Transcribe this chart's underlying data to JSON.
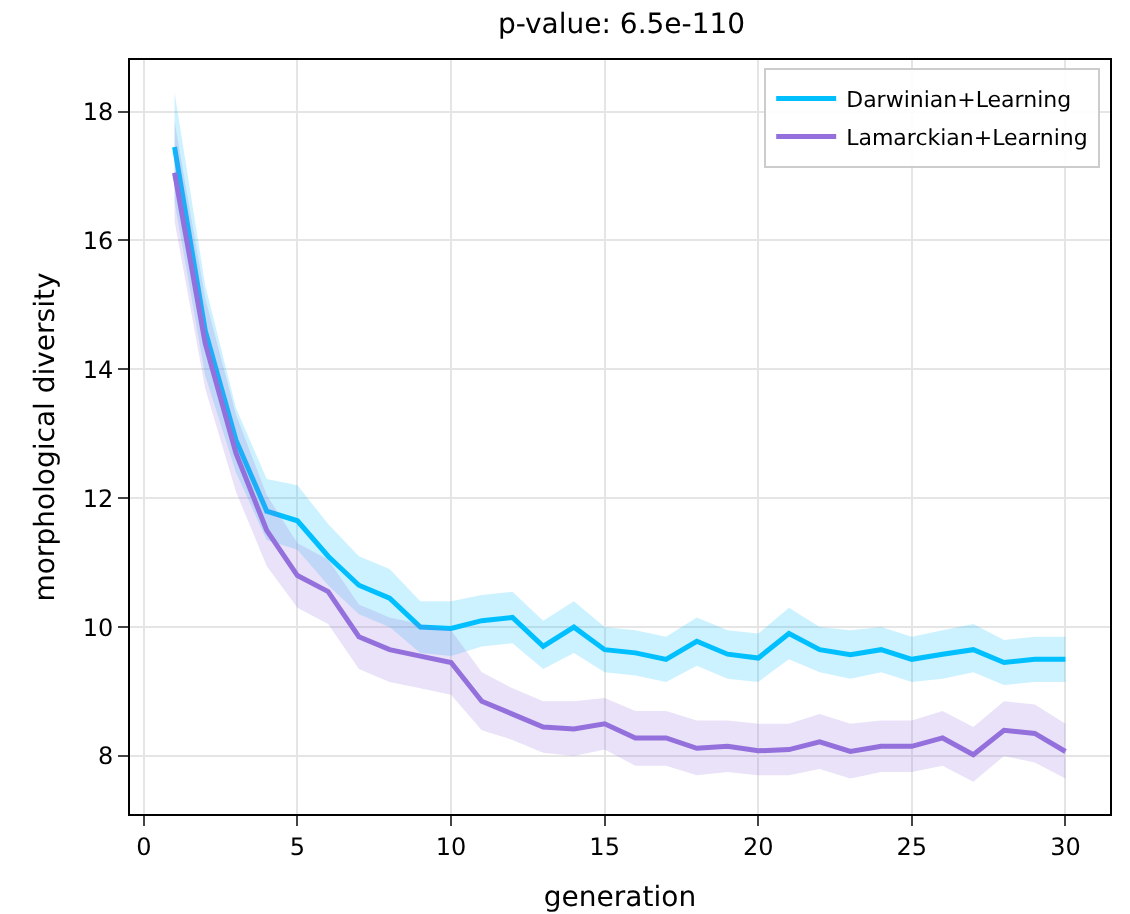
{
  "chart_data": {
    "type": "line",
    "title": "p-value: 6.5e-110",
    "xlabel": "generation",
    "ylabel": "morphological diversity",
    "x": [
      1,
      2,
      3,
      4,
      5,
      6,
      7,
      8,
      9,
      10,
      11,
      12,
      13,
      14,
      15,
      16,
      17,
      18,
      19,
      20,
      21,
      22,
      23,
      24,
      25,
      26,
      27,
      28,
      29,
      30
    ],
    "series": [
      {
        "name": "Darwinian+Learning",
        "color": "#00bfff",
        "values": [
          17.45,
          14.6,
          12.9,
          11.8,
          11.65,
          11.1,
          10.65,
          10.45,
          10.0,
          9.98,
          10.1,
          10.15,
          9.7,
          10.0,
          9.65,
          9.6,
          9.5,
          9.78,
          9.58,
          9.52,
          9.9,
          9.65,
          9.57,
          9.65,
          9.5,
          9.58,
          9.65,
          9.45,
          9.5,
          9.5
        ],
        "lower": [
          16.6,
          13.9,
          12.4,
          11.35,
          11.2,
          10.65,
          10.2,
          10.0,
          9.6,
          9.55,
          9.7,
          9.75,
          9.35,
          9.6,
          9.3,
          9.25,
          9.15,
          9.4,
          9.2,
          9.15,
          9.5,
          9.3,
          9.2,
          9.3,
          9.15,
          9.2,
          9.3,
          9.1,
          9.15,
          9.15
        ],
        "upper": [
          18.3,
          15.3,
          13.4,
          12.3,
          12.2,
          11.6,
          11.1,
          10.9,
          10.4,
          10.4,
          10.5,
          10.55,
          10.1,
          10.4,
          10.0,
          9.95,
          9.85,
          10.15,
          9.95,
          9.9,
          10.3,
          10.0,
          9.95,
          10.0,
          9.85,
          9.95,
          10.05,
          9.8,
          9.85,
          9.85
        ]
      },
      {
        "name": "Lamarckian+Learning",
        "color": "#9370db",
        "values": [
          17.05,
          14.4,
          12.7,
          11.5,
          10.8,
          10.55,
          9.85,
          9.65,
          9.55,
          9.45,
          8.85,
          8.65,
          8.45,
          8.42,
          8.5,
          8.28,
          8.28,
          8.12,
          8.15,
          8.08,
          8.1,
          8.22,
          8.07,
          8.15,
          8.15,
          8.28,
          8.02,
          8.4,
          8.35,
          8.07
        ],
        "lower": [
          16.3,
          13.7,
          12.1,
          10.95,
          10.3,
          10.05,
          9.35,
          9.15,
          9.05,
          8.95,
          8.4,
          8.25,
          8.05,
          8.0,
          8.1,
          7.85,
          7.85,
          7.7,
          7.75,
          7.7,
          7.7,
          7.8,
          7.65,
          7.75,
          7.75,
          7.85,
          7.6,
          8.0,
          7.9,
          7.65
        ],
        "upper": [
          17.85,
          15.1,
          13.3,
          12.05,
          11.3,
          11.05,
          10.35,
          10.15,
          10.05,
          9.95,
          9.3,
          9.05,
          8.85,
          8.85,
          8.9,
          8.7,
          8.7,
          8.55,
          8.55,
          8.5,
          8.5,
          8.65,
          8.5,
          8.55,
          8.55,
          8.7,
          8.45,
          8.85,
          8.8,
          8.5
        ]
      }
    ],
    "xlim": [
      -0.45,
      31.45
    ],
    "xticks": [
      0,
      5,
      10,
      15,
      20,
      25,
      30
    ],
    "ylim": [
      7.1,
      18.8
    ],
    "yticks": [
      8,
      10,
      12,
      14,
      16,
      18
    ],
    "grid": true,
    "legend": "top right"
  }
}
